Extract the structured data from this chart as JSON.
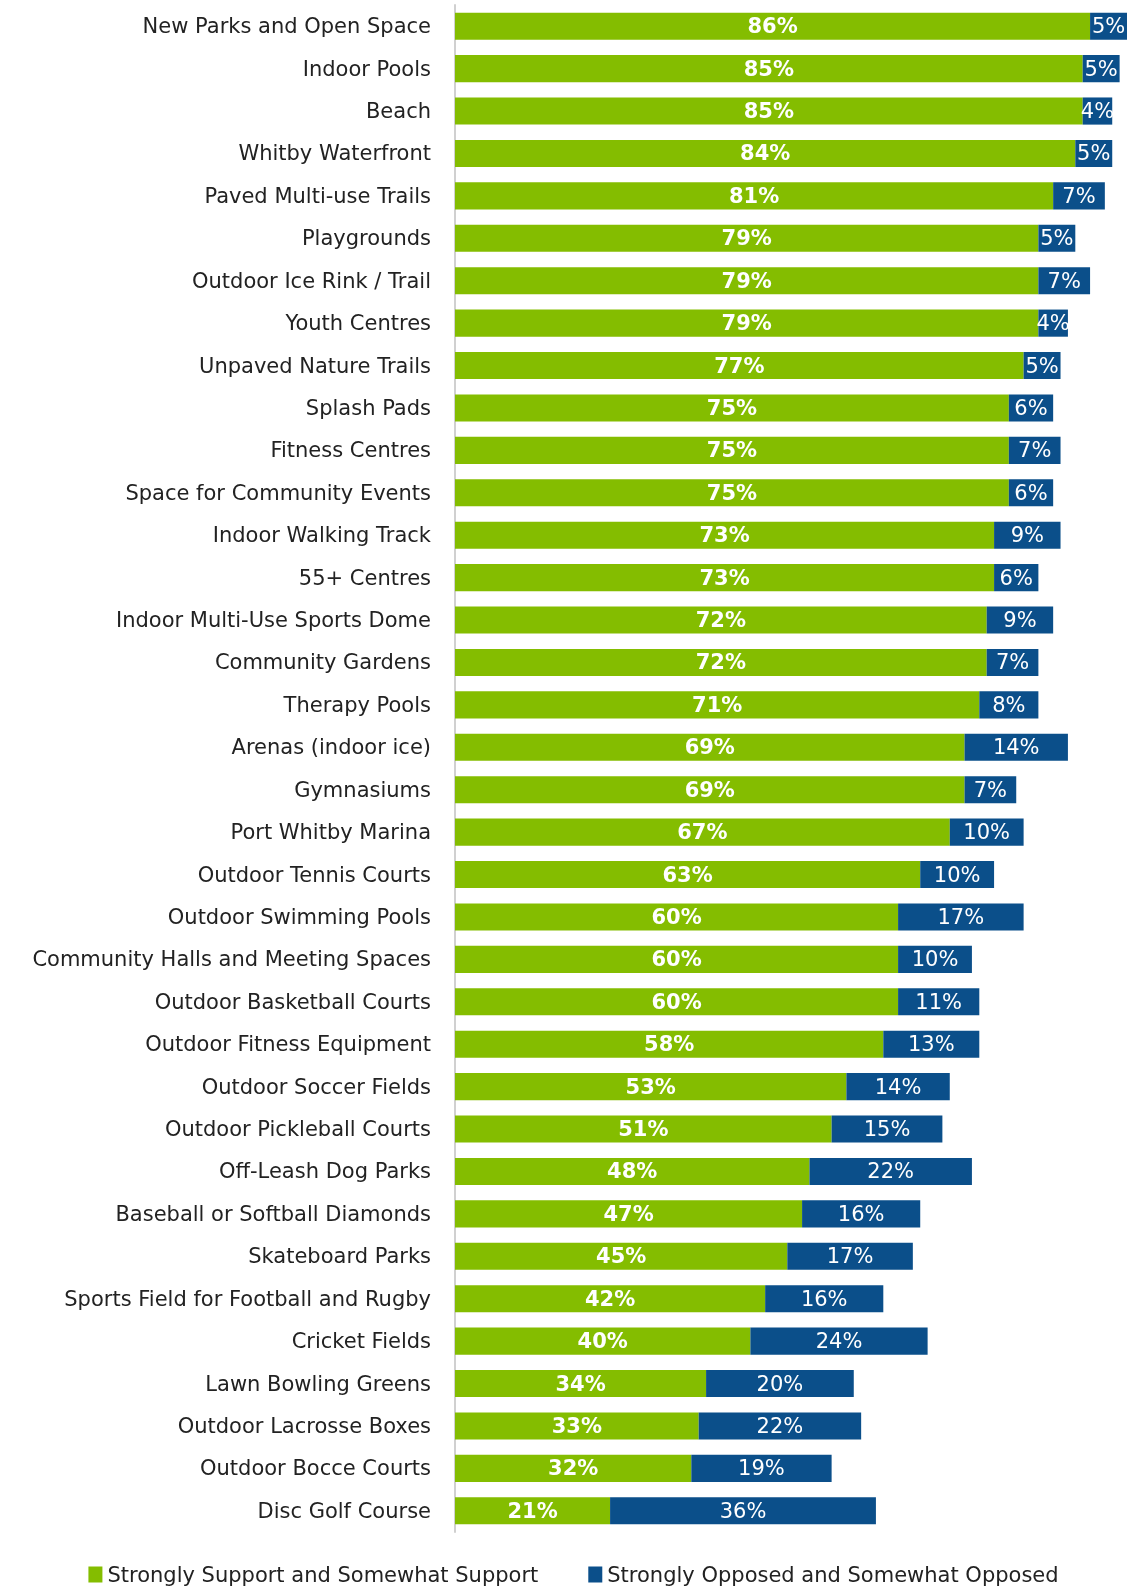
{
  "chart_data": {
    "type": "bar",
    "orientation": "horizontal",
    "stacked": true,
    "legend": "bottom",
    "categories": [
      "New Parks and Open Space",
      "Indoor Pools",
      "Beach",
      "Whitby Waterfront",
      "Paved Multi-use Trails",
      "Playgrounds",
      "Outdoor Ice Rink / Trail",
      "Youth Centres",
      "Unpaved Nature Trails",
      "Splash Pads",
      "Fitness Centres",
      "Space for Community Events",
      "Indoor Walking Track",
      "55+ Centres",
      "Indoor Multi-Use Sports Dome",
      "Community Gardens",
      "Therapy Pools",
      "Arenas (indoor ice)",
      "Gymnasiums",
      "Port Whitby Marina",
      "Outdoor Tennis Courts",
      "Outdoor Swimming Pools",
      "Community Halls and Meeting Spaces",
      "Outdoor Basketball Courts",
      "Outdoor Fitness Equipment",
      "Outdoor Soccer Fields",
      "Outdoor Pickleball Courts",
      "Off-Leash Dog Parks",
      "Baseball or Softball Diamonds",
      "Skateboard Parks",
      "Sports Field for Football and Rugby",
      "Cricket Fields",
      "Lawn Bowling Greens",
      "Outdoor Lacrosse Boxes",
      "Outdoor Bocce Courts",
      "Disc Golf Course"
    ],
    "series": [
      {
        "name": "Strongly Support and Somewhat Support",
        "color": "#84bd00",
        "values": [
          86,
          85,
          85,
          84,
          81,
          79,
          79,
          79,
          77,
          75,
          75,
          75,
          73,
          73,
          72,
          72,
          71,
          69,
          69,
          67,
          63,
          60,
          60,
          60,
          58,
          53,
          51,
          48,
          47,
          45,
          42,
          40,
          34,
          33,
          32,
          21
        ],
        "value_labels": [
          "86%",
          "85%",
          "85%",
          "84%",
          "81%",
          "79%",
          "79%",
          "79%",
          "77%",
          "75%",
          "75%",
          "75%",
          "73%",
          "73%",
          "72%",
          "72%",
          "71%",
          "69%",
          "69%",
          "67%",
          "63%",
          "60%",
          "60%",
          "60%",
          "58%",
          "53%",
          "51%",
          "48%",
          "47%",
          "45%",
          "42%",
          "40%",
          "34%",
          "33%",
          "32%",
          "21%"
        ]
      },
      {
        "name": "Strongly Opposed and Somewhat Opposed",
        "color": "#0b4f8a",
        "values": [
          5,
          5,
          4,
          5,
          7,
          5,
          7,
          4,
          5,
          6,
          7,
          6,
          9,
          6,
          9,
          7,
          8,
          14,
          7,
          10,
          10,
          17,
          10,
          11,
          13,
          14,
          15,
          22,
          16,
          17,
          16,
          24,
          20,
          22,
          19,
          36
        ],
        "value_labels": [
          "5%",
          "5%",
          "4%",
          "5%",
          "7%",
          "5%",
          "7%",
          "4%",
          "5%",
          "6%",
          "7%",
          "6%",
          "9%",
          "6%",
          "9%",
          "7%",
          "8%",
          "14%",
          "7%",
          "10%",
          "10%",
          "17%",
          "10%",
          "11%",
          "13%",
          "14%",
          "15%",
          "22%",
          "16%",
          "17%",
          "16%",
          "24%",
          "20%",
          "22%",
          "19%",
          "36%"
        ]
      }
    ]
  }
}
